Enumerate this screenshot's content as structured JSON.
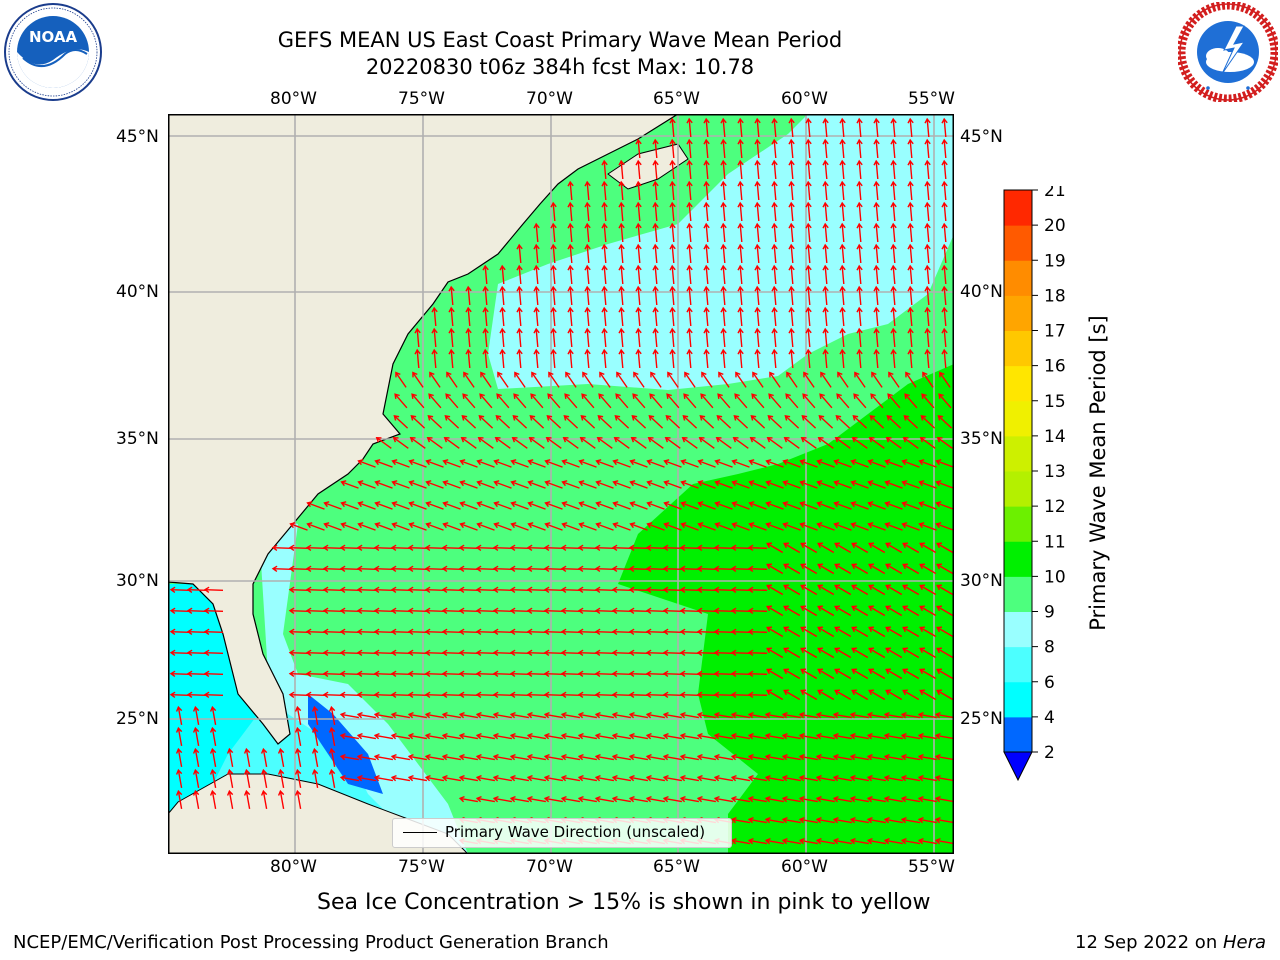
{
  "header": {
    "title_line1": "GEFS MEAN US East Coast Primary Wave Mean Period",
    "title_line2": "20220830 t06z 384h fcst   Max: 10.78"
  },
  "logos": {
    "noaa": {
      "text": "NOAA",
      "ring_text": "NATIONAL OCEANIC AND ATMOSPHERIC ADMINISTRATION · U.S. DEPARTMENT OF COMMERCE"
    },
    "nws": {
      "ring_text": "NATIONAL WEATHER SERVICE"
    }
  },
  "map": {
    "lon_labels": [
      "80°W",
      "75°W",
      "70°W",
      "65°W",
      "60°W",
      "55°W"
    ],
    "lat_labels": [
      "45°N",
      "40°N",
      "35°N",
      "30°N",
      "25°N"
    ],
    "lon_range": [
      -85,
      -54.5
    ],
    "lat_range": [
      20.5,
      46
    ],
    "legend_label": "Primary Wave Direction (unscaled)",
    "vector_color": "#ff0000",
    "land_color": "#efedde",
    "grid_color": "#b0b0b0"
  },
  "colorbar": {
    "title": "Primary Wave Mean Period [s]",
    "ticks": [
      "2",
      "4",
      "6",
      "8",
      "9",
      "10",
      "11",
      "12",
      "13",
      "14",
      "15",
      "16",
      "17",
      "18",
      "19",
      "20",
      "21"
    ],
    "colors": [
      "#0068ff",
      "#00ffff",
      "#4cffff",
      "#99ffff",
      "#4dff7e",
      "#00f000",
      "#6cf000",
      "#b4f000",
      "#cdf000",
      "#f0f000",
      "#ffe600",
      "#ffc800",
      "#ffa500",
      "#ff8c00",
      "#ff5a00",
      "#ff2800",
      "#ff0000"
    ],
    "under_color": "#0000ff"
  },
  "footer": {
    "note": "Sea Ice Concentration > 15% is shown in pink to yellow",
    "credit": "NCEP/EMC/Verification Post Processing Product Generation Branch",
    "date": "12 Sep 2022 on ",
    "host": "Hera"
  }
}
